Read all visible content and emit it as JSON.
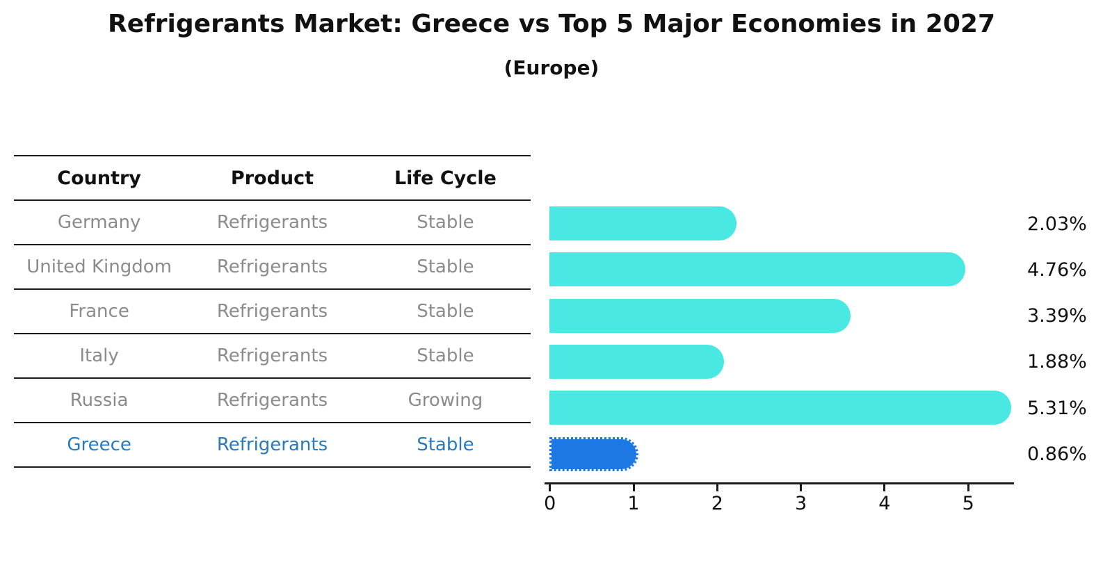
{
  "header": {
    "title": "Refrigerants Market: Greece vs Top 5 Major Economies in 2027",
    "subtitle": "(Europe)"
  },
  "table": {
    "columns": [
      "Country",
      "Product",
      "Life Cycle"
    ],
    "rows": [
      {
        "country": "Germany",
        "product": "Refrigerants",
        "life_cycle": "Stable",
        "highlight": false
      },
      {
        "country": "United Kingdom",
        "product": "Refrigerants",
        "life_cycle": "Stable",
        "highlight": false
      },
      {
        "country": "France",
        "product": "Refrigerants",
        "life_cycle": "Stable",
        "highlight": false
      },
      {
        "country": "Italy",
        "product": "Refrigerants",
        "life_cycle": "Stable",
        "highlight": false
      },
      {
        "country": "Russia",
        "product": "Refrigerants",
        "life_cycle": "Growing",
        "highlight": false
      },
      {
        "country": "Greece",
        "product": "Refrigerants",
        "life_cycle": "Stable",
        "highlight": true
      }
    ]
  },
  "chart_data": {
    "type": "bar",
    "orientation": "horizontal",
    "title": "Refrigerants Market: Greece vs Top 5 Major Economies in 2027 (Europe)",
    "categories": [
      "Germany",
      "United Kingdom",
      "France",
      "Italy",
      "Russia",
      "Greece"
    ],
    "values": [
      2.03,
      4.76,
      3.39,
      1.88,
      5.31,
      0.86
    ],
    "value_labels": [
      "2.03%",
      "4.76%",
      "3.39%",
      "1.88%",
      "5.31%",
      "0.86%"
    ],
    "highlight_category": "Greece",
    "x_ticks": [
      0,
      1,
      2,
      3,
      4,
      5
    ],
    "xlim": [
      0,
      5.6
    ],
    "xlabel": "",
    "ylabel": "",
    "grid": false,
    "legend": "none"
  },
  "colors": {
    "bar": "#4AE8E3",
    "highlight_bar": "#1E78E4",
    "table_text": "#8B8B8B",
    "highlight_text": "#2879BE",
    "heading_text": "#111111",
    "axis": "#1A1A1A"
  }
}
